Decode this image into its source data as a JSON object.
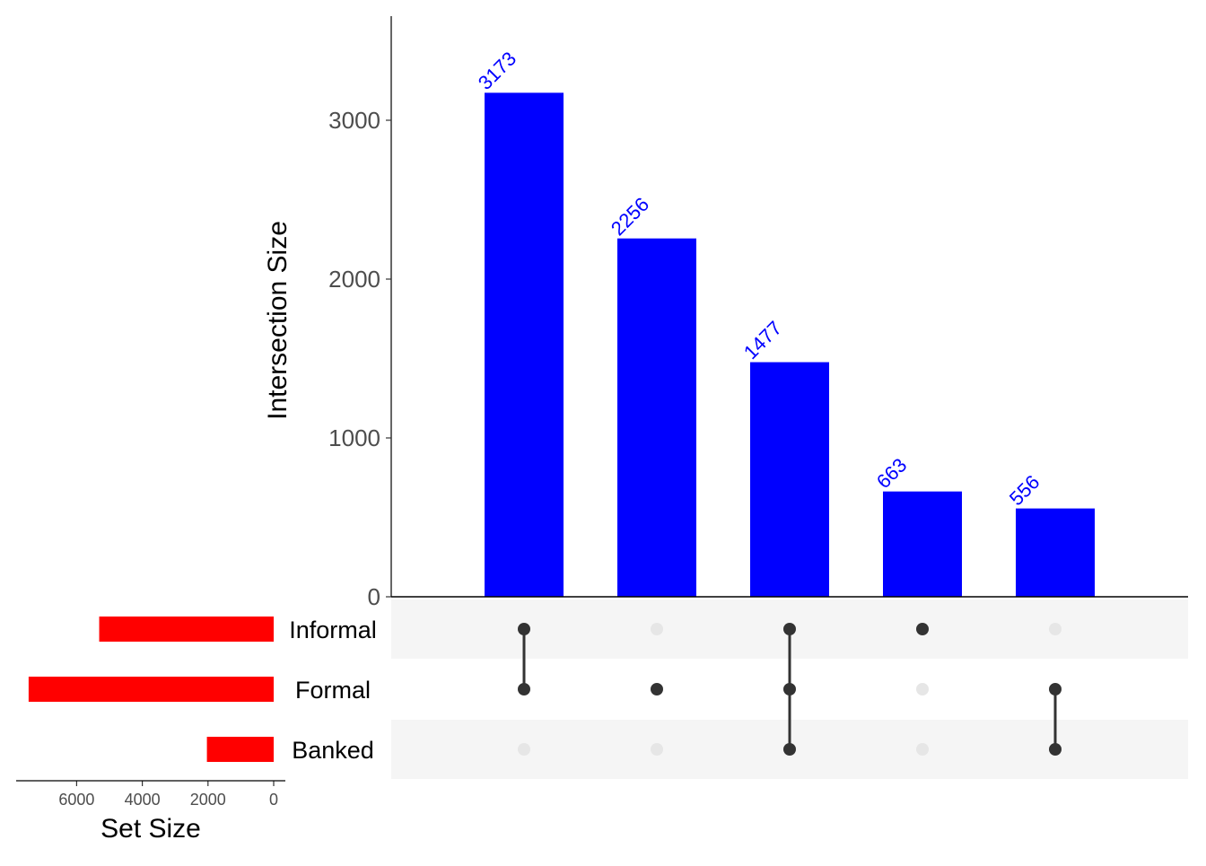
{
  "chart_data": {
    "type": "upset",
    "intersection_ylabel": "Intersection Size",
    "set_size_xlabel": "Set Size",
    "intersection_ylim": [
      0,
      3650
    ],
    "intersection_yticks": [
      "0",
      "1000",
      "2000",
      "3000"
    ],
    "set_size_xlim": [
      0,
      7600
    ],
    "set_size_xticks": [
      "6000",
      "4000",
      "2000",
      "0"
    ],
    "sets": [
      {
        "name": "Informal",
        "size": 5313
      },
      {
        "name": "Formal",
        "size": 7462
      },
      {
        "name": "Banked",
        "size": 2033
      }
    ],
    "intersections": [
      {
        "value": 3173,
        "label": "3173",
        "members": [
          "Informal",
          "Formal"
        ]
      },
      {
        "value": 2256,
        "label": "2256",
        "members": [
          "Formal"
        ]
      },
      {
        "value": 1477,
        "label": "1477",
        "members": [
          "Informal",
          "Formal",
          "Banked"
        ]
      },
      {
        "value": 663,
        "label": "663",
        "members": [
          "Informal"
        ]
      },
      {
        "value": 556,
        "label": "556",
        "members": [
          "Formal",
          "Banked"
        ]
      }
    ],
    "colors": {
      "intersection_bars": "#0000ff",
      "set_bars": "#ff0000",
      "label_text": "#0000ff",
      "dot_active": "#333333",
      "dot_inactive": "#e6e6e6",
      "row_shade": "#f5f5f5"
    },
    "grid": false
  }
}
